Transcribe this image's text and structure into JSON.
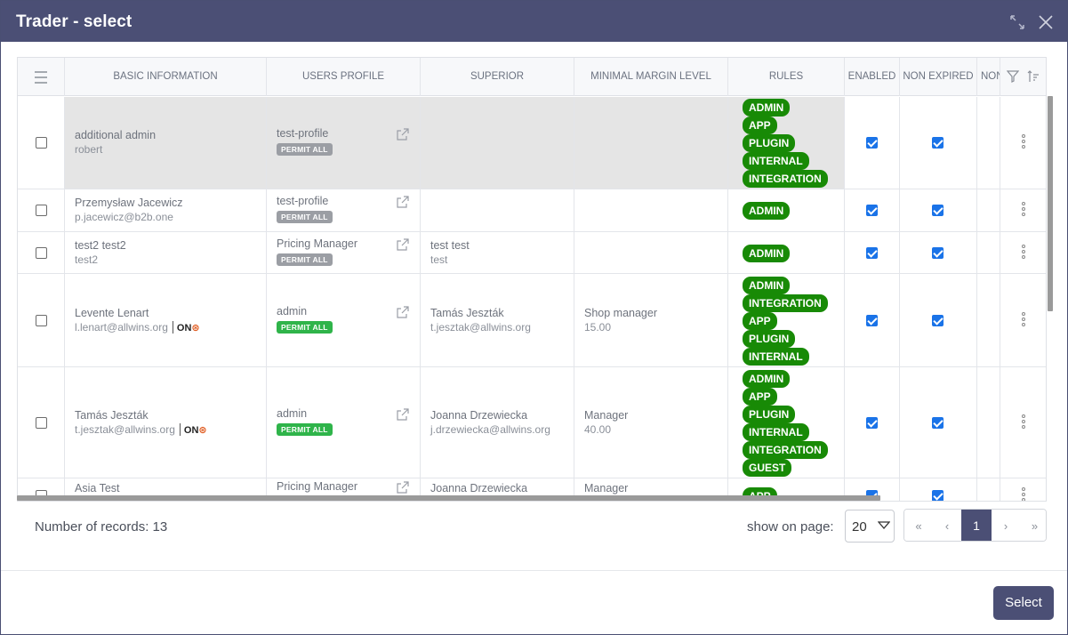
{
  "dialog": {
    "title": "Trader - select"
  },
  "columns": {
    "basic_information": "BASIC INFORMATION",
    "users_profile": "USERS PROFILE",
    "superior": "SUPERIOR",
    "minimal_margin_level": "MINIMAL MARGIN LEVEL",
    "rules": "RULES",
    "enabled": "ENABLED",
    "non_expired": "NON EXPIRED",
    "non_truncated": "NON"
  },
  "rows": [
    {
      "name": "additional admin",
      "sub": "robert",
      "profile": "test-profile",
      "permit": "PERMIT ALL",
      "superior_name": "",
      "superior_email": "",
      "margin_name": "",
      "margin_value": "",
      "rules": [
        "ADMIN",
        "APP",
        "PLUGIN",
        "INTERNAL",
        "INTEGRATION"
      ],
      "enabled": true,
      "non_expired": true
    },
    {
      "name": "Przemysław Jacewicz",
      "sub": "p.jacewicz@b2b.one",
      "profile": "test-profile",
      "permit": "PERMIT ALL",
      "superior_name": "",
      "superior_email": "",
      "margin_name": "",
      "margin_value": "",
      "rules": [
        "ADMIN"
      ],
      "enabled": true,
      "non_expired": true
    },
    {
      "name": "test2 test2",
      "sub": "test2",
      "profile": "Pricing Manager",
      "permit": "PERMIT ALL",
      "superior_name": "test test",
      "superior_email": "test",
      "margin_name": "",
      "margin_value": "",
      "rules": [
        "ADMIN"
      ],
      "enabled": true,
      "non_expired": true
    },
    {
      "name": "Levente Lenart",
      "sub": "l.lenart@allwins.org",
      "logo": "ON",
      "profile": "admin",
      "permit": "PERMIT ALL",
      "superior_name": "Tamás Jeszták",
      "superior_email": "t.jesztak@allwins.org",
      "margin_name": "Shop manager",
      "margin_value": "15.00",
      "rules": [
        "ADMIN",
        "INTEGRATION",
        "APP",
        "PLUGIN",
        "INTERNAL"
      ],
      "enabled": true,
      "non_expired": true
    },
    {
      "name": "Tamás Jeszták",
      "sub": "t.jesztak@allwins.org",
      "logo": "ON",
      "profile": "admin",
      "permit": "PERMIT ALL",
      "superior_name": "Joanna Drzewiecka",
      "superior_email": "j.drzewiecka@allwins.org",
      "margin_name": "Manager",
      "margin_value": "40.00",
      "rules": [
        "ADMIN",
        "APP",
        "PLUGIN",
        "INTERNAL",
        "INTEGRATION",
        "GUEST"
      ],
      "enabled": true,
      "non_expired": true
    },
    {
      "name": "Asia Test",
      "sub": "",
      "profile": "Pricing Manager",
      "permit": "",
      "superior_name": "Joanna Drzewiecka",
      "superior_email": "",
      "margin_name": "Manager",
      "margin_value": "",
      "rules": [
        "APP"
      ],
      "enabled": true,
      "non_expired": true
    }
  ],
  "footer": {
    "records_label": "Number of records: 13",
    "show_on_page_label": "show on page:",
    "page_size": "20",
    "pager": {
      "first": "«",
      "prev": "‹",
      "current": "1",
      "next": "›",
      "last": "»"
    },
    "select_label": "Select"
  },
  "colors": {
    "titlebar": "#4b4f75",
    "rule_badge": "#188a06",
    "permit_gray": "#9b9ea4",
    "permit_green": "#2fb44a",
    "checkbox": "#1a73e8",
    "on_logo_accent": "#e05a1e"
  }
}
